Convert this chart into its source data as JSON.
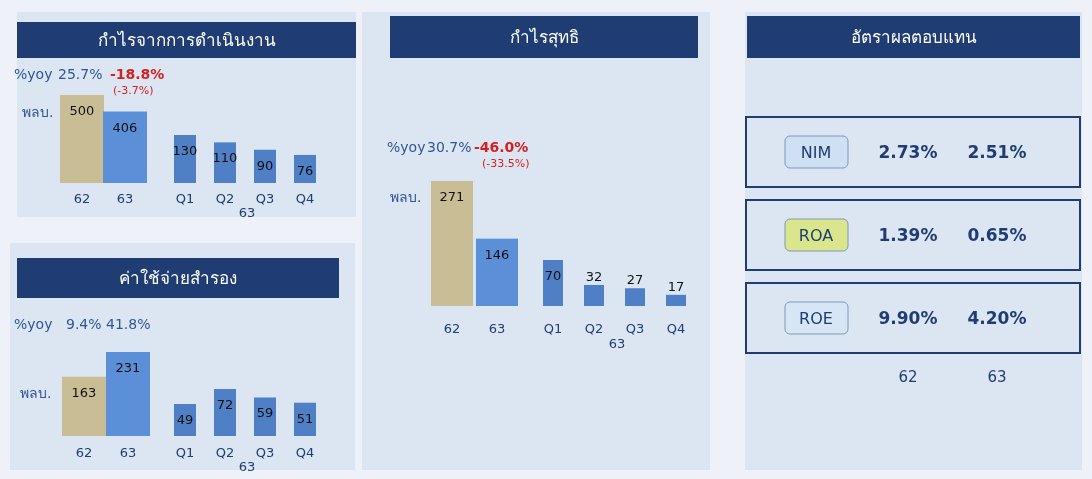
{
  "chart_data": [
    {
      "type": "bar",
      "title": "กำไรจากการดำเนินงาน",
      "categories": [
        "62",
        "63"
      ],
      "values": [
        500,
        406
      ],
      "colors": [
        "#c9bd95",
        "#5b8fd8"
      ],
      "data_labels": true,
      "annotations": [
        "%yoy",
        "25.7%",
        "-18.8%",
        "(-3.7%)",
        "พลบ."
      ]
    },
    {
      "type": "bar",
      "categories": [
        "Q1",
        "Q2",
        "Q3",
        "Q4"
      ],
      "values": [
        130,
        110,
        90,
        76
      ],
      "colors": [
        "#4f7fc4",
        "#4f7fc4",
        "#4f7fc4",
        "#4f7fc4"
      ],
      "data_labels": true,
      "xlabel": "63"
    },
    {
      "type": "bar",
      "title": "กำไรสุทธิ",
      "categories": [
        "62",
        "63"
      ],
      "values": [
        271,
        146
      ],
      "colors": [
        "#c9bd95",
        "#5b8fd8"
      ],
      "data_labels": true,
      "annotations": [
        "%yoy",
        "30.7%",
        "-46.0%",
        "(-33.5%)",
        "พลบ."
      ]
    },
    {
      "type": "bar",
      "categories": [
        "Q1",
        "Q2",
        "Q3",
        "Q4"
      ],
      "values": [
        70,
        32,
        27,
        17
      ],
      "colors": [
        "#4f7fc4",
        "#4f7fc4",
        "#4f7fc4",
        "#4f7fc4"
      ],
      "data_labels": true,
      "xlabel": "63"
    },
    {
      "type": "other",
      "title": "อัตราผลตอบแทน",
      "categories": [
        "NIM",
        "ROA",
        "ROE"
      ],
      "colors": [
        "#cfe0f4",
        "#d9e68e",
        "#d6e6f5"
      ],
      "series": [
        {
          "name": "62",
          "values": [
            2.73,
            1.39,
            9.9
          ],
          "value_labels": [
            "2.73%",
            "1.39%",
            "9.90%"
          ]
        },
        {
          "name": "63",
          "values": [
            2.51,
            0.65,
            4.2
          ],
          "value_labels": [
            "2.51%",
            "0.65%",
            "4.20%"
          ]
        }
      ]
    },
    {
      "type": "bar",
      "title": "ค่าใช้จ่ายสำรอง",
      "categories": [
        "62",
        "63"
      ],
      "values": [
        163,
        231
      ],
      "colors": [
        "#c9bd95",
        "#5b8fd8"
      ],
      "data_labels": true,
      "annotations": [
        "%yoy",
        "9.4%",
        "41.8%",
        "พลบ."
      ]
    },
    {
      "type": "bar",
      "categories": [
        "Q1",
        "Q2",
        "Q3",
        "Q4"
      ],
      "values": [
        49,
        72,
        59,
        51
      ],
      "colors": [
        "#4f7fc4",
        "#4f7fc4",
        "#4f7fc4",
        "#4f7fc4"
      ],
      "data_labels": true,
      "xlabel": "63"
    }
  ]
}
